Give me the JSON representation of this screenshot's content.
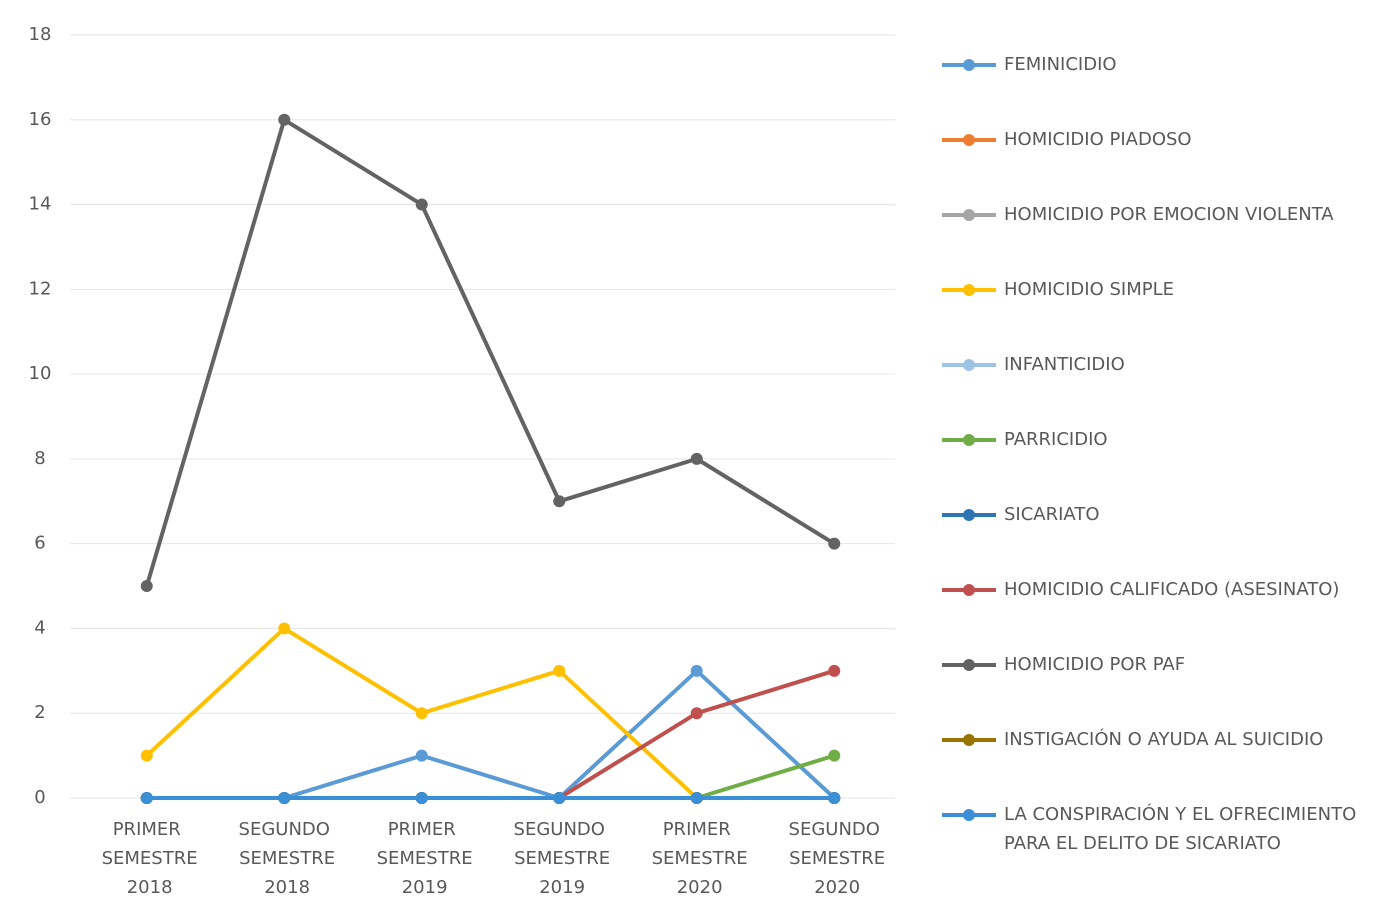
{
  "chart_data": {
    "type": "line",
    "categories": [
      "PRIMER SEMESTRE 2018",
      "SEGUNDO SEMESTRE 2018",
      "PRIMER SEMESTRE 2019",
      "SEGUNDO SEMESTRE 2019",
      "PRIMER SEMESTRE 2020",
      "SEGUNDO SEMESTRE 2020"
    ],
    "series": [
      {
        "name": "FEMINICIDIO",
        "color": "#5b9bd5",
        "values": [
          0,
          0,
          1,
          0,
          3,
          0
        ]
      },
      {
        "name": "HOMICIDIO PIADOSO",
        "color": "#ed7d31",
        "values": [
          0,
          0,
          0,
          0,
          0,
          0
        ]
      },
      {
        "name": "HOMICIDIO POR EMOCION VIOLENTA",
        "color": "#a5a5a5",
        "values": [
          0,
          0,
          0,
          0,
          0,
          0
        ]
      },
      {
        "name": "HOMICIDIO SIMPLE",
        "color": "#ffc000",
        "values": [
          1,
          4,
          2,
          3,
          0,
          0
        ]
      },
      {
        "name": "INFANTICIDIO",
        "color": "#9dc3e6",
        "values": [
          0,
          0,
          0,
          0,
          0,
          0
        ]
      },
      {
        "name": "PARRICIDIO",
        "color": "#70ad47",
        "values": [
          0,
          0,
          0,
          0,
          0,
          1
        ]
      },
      {
        "name": "SICARIATO",
        "color": "#2e75b6",
        "values": [
          0,
          0,
          0,
          0,
          0,
          0
        ]
      },
      {
        "name": "HOMICIDIO CALIFICADO (ASESINATO)",
        "color": "#c0504d",
        "values": [
          0,
          0,
          0,
          0,
          2,
          3
        ]
      },
      {
        "name": "HOMICIDIO POR PAF",
        "color": "#636363",
        "values": [
          5,
          16,
          14,
          7,
          8,
          6
        ]
      },
      {
        "name": "INSTIGACIÓN O AYUDA AL SUICIDIO",
        "color": "#997300",
        "values": [
          0,
          0,
          0,
          0,
          0,
          0
        ]
      },
      {
        "name": "LA CONSPIRACIÓN Y EL OFRECIMIENTO PARA EL DELITO DE SICARIATO",
        "color": "#3a8fd6",
        "values": [
          0,
          0,
          0,
          0,
          0,
          0
        ]
      }
    ],
    "ylim": [
      0,
      18
    ],
    "yticks": [
      0,
      2,
      4,
      6,
      8,
      10,
      12,
      14,
      16,
      18
    ],
    "grid": true,
    "legend": "right"
  }
}
